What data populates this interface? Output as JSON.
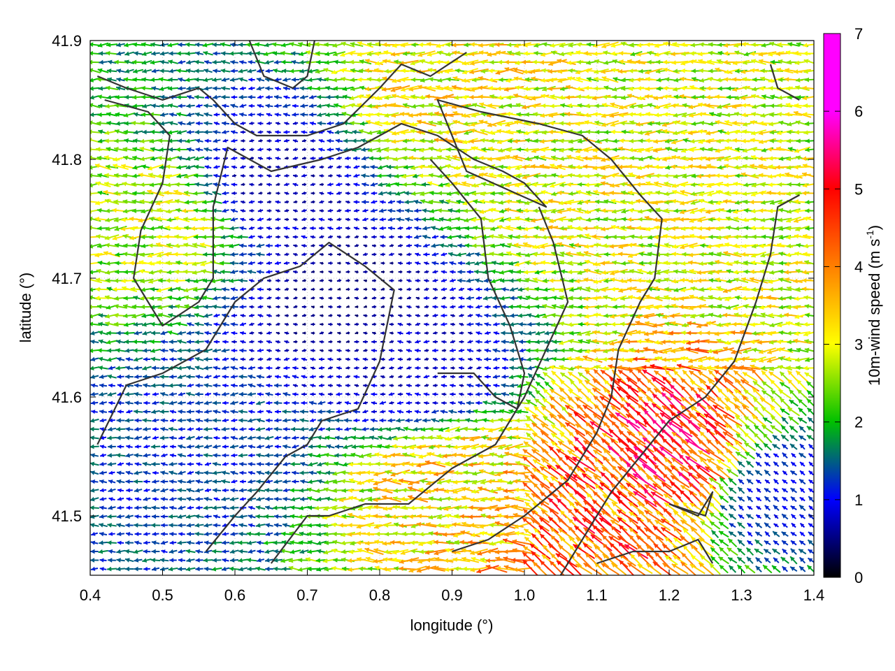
{
  "chart_data": {
    "type": "vector-field",
    "xlabel": "longitude (°)",
    "ylabel": "latitude (°)",
    "colorbar_label_main": "10m-wind speed (m s",
    "colorbar_label_exp": "-1",
    "colorbar_label_close": ")",
    "xlim": [
      0.4,
      1.4
    ],
    "ylim": [
      41.45,
      41.9
    ],
    "xticks": [
      "0.4",
      "0.5",
      "0.6",
      "0.7",
      "0.8",
      "0.9",
      "1.0",
      "1.1",
      "1.2",
      "1.3",
      "1.4"
    ],
    "yticks": [
      "41.5",
      "41.6",
      "41.7",
      "41.8",
      "41.9"
    ],
    "colorbar_ticks": [
      "0",
      "1",
      "2",
      "3",
      "4",
      "5",
      "6",
      "7"
    ],
    "colorbar_range": [
      0,
      7
    ],
    "colorbar_colors": [
      "#000000",
      "#0000ff",
      "#00c000",
      "#ffff00",
      "#ff8000",
      "#ff0000",
      "#ff00ff"
    ],
    "grid": true,
    "wind_direction": "mostly from east (arrows pointing west)",
    "speed_regions": [
      {
        "lon": 0.75,
        "lat": 41.68,
        "speed": 0.6
      },
      {
        "lon": 0.65,
        "lat": 41.78,
        "speed": 0.8
      },
      {
        "lon": 0.85,
        "lat": 41.62,
        "speed": 0.9
      },
      {
        "lon": 0.5,
        "lat": 41.75,
        "speed": 3.2
      },
      {
        "lon": 0.9,
        "lat": 41.85,
        "speed": 3.6
      },
      {
        "lon": 1.1,
        "lat": 41.76,
        "speed": 3.4
      },
      {
        "lon": 1.2,
        "lat": 41.55,
        "speed": 5.5
      },
      {
        "lon": 1.1,
        "lat": 41.5,
        "speed": 5.0
      },
      {
        "lon": 0.9,
        "lat": 41.53,
        "speed": 3.8
      },
      {
        "lon": 1.35,
        "lat": 41.52,
        "speed": 1.3
      },
      {
        "lon": 0.55,
        "lat": 41.55,
        "speed": 1.5
      }
    ],
    "contours": [
      [
        [
          0.41,
          41.87
        ],
        [
          0.45,
          41.86
        ],
        [
          0.5,
          41.85
        ],
        [
          0.55,
          41.86
        ],
        [
          0.57,
          41.85
        ],
        [
          0.6,
          41.83
        ],
        [
          0.63,
          41.82
        ],
        [
          0.7,
          41.82
        ],
        [
          0.75,
          41.83
        ],
        [
          0.8,
          41.86
        ],
        [
          0.83,
          41.88
        ],
        [
          0.87,
          41.87
        ],
        [
          0.92,
          41.89
        ]
      ],
      [
        [
          0.42,
          41.85
        ],
        [
          0.48,
          41.84
        ],
        [
          0.51,
          41.82
        ],
        [
          0.5,
          41.78
        ],
        [
          0.47,
          41.74
        ],
        [
          0.46,
          41.7
        ],
        [
          0.5,
          41.66
        ],
        [
          0.55,
          41.68
        ],
        [
          0.57,
          41.7
        ],
        [
          0.57,
          41.76
        ],
        [
          0.59,
          41.81
        ],
        [
          0.65,
          41.79
        ],
        [
          0.72,
          41.8
        ],
        [
          0.77,
          41.81
        ],
        [
          0.83,
          41.83
        ],
        [
          0.88,
          41.82
        ],
        [
          0.93,
          41.8
        ],
        [
          0.97,
          41.79
        ],
        [
          1.0,
          41.78
        ],
        [
          1.03,
          41.76
        ],
        [
          0.92,
          41.79
        ],
        [
          0.88,
          41.85
        ],
        [
          0.94,
          41.84
        ],
        [
          1.02,
          41.83
        ],
        [
          1.08,
          41.82
        ],
        [
          1.12,
          41.8
        ],
        [
          1.16,
          41.77
        ],
        [
          1.19,
          41.75
        ],
        [
          1.18,
          41.7
        ],
        [
          1.16,
          41.68
        ],
        [
          1.13,
          41.64
        ],
        [
          1.12,
          41.6
        ],
        [
          1.1,
          41.57
        ],
        [
          1.06,
          41.53
        ],
        [
          1.0,
          41.5
        ],
        [
          0.95,
          41.48
        ],
        [
          0.9,
          41.47
        ]
      ],
      [
        [
          0.41,
          41.56
        ],
        [
          0.45,
          41.61
        ],
        [
          0.5,
          41.62
        ],
        [
          0.56,
          41.64
        ],
        [
          0.6,
          41.68
        ],
        [
          0.64,
          41.7
        ],
        [
          0.69,
          41.71
        ],
        [
          0.73,
          41.73
        ],
        [
          0.78,
          41.71
        ],
        [
          0.82,
          41.69
        ],
        [
          0.8,
          41.63
        ],
        [
          0.77,
          41.59
        ],
        [
          0.72,
          41.58
        ],
        [
          0.7,
          41.56
        ],
        [
          0.67,
          41.55
        ],
        [
          0.63,
          41.52
        ],
        [
          0.6,
          41.5
        ],
        [
          0.56,
          41.47
        ]
      ],
      [
        [
          0.65,
          41.46
        ],
        [
          0.7,
          41.5
        ],
        [
          0.73,
          41.5
        ],
        [
          0.78,
          41.51
        ],
        [
          0.84,
          41.51
        ],
        [
          0.9,
          41.54
        ],
        [
          0.96,
          41.56
        ],
        [
          1.0,
          41.6
        ],
        [
          1.03,
          41.64
        ],
        [
          1.06,
          41.68
        ],
        [
          1.04,
          41.73
        ],
        [
          1.02,
          41.76
        ]
      ],
      [
        [
          0.88,
          41.62
        ],
        [
          0.93,
          41.62
        ],
        [
          0.96,
          41.6
        ],
        [
          0.99,
          41.59
        ],
        [
          1.0,
          41.62
        ],
        [
          0.98,
          41.66
        ],
        [
          0.95,
          41.7
        ],
        [
          0.94,
          41.75
        ],
        [
          0.9,
          41.78
        ],
        [
          0.87,
          41.8
        ]
      ],
      [
        [
          1.05,
          41.45
        ],
        [
          1.08,
          41.48
        ],
        [
          1.12,
          41.52
        ],
        [
          1.16,
          41.55
        ],
        [
          1.2,
          41.58
        ],
        [
          1.25,
          41.6
        ],
        [
          1.29,
          41.63
        ],
        [
          1.32,
          41.68
        ],
        [
          1.34,
          41.72
        ],
        [
          1.35,
          41.76
        ],
        [
          1.38,
          41.77
        ]
      ],
      [
        [
          1.1,
          41.46
        ],
        [
          1.15,
          41.47
        ],
        [
          1.2,
          41.47
        ],
        [
          1.24,
          41.48
        ],
        [
          1.26,
          41.46
        ]
      ],
      [
        [
          1.2,
          41.51
        ],
        [
          1.24,
          41.5
        ],
        [
          1.26,
          41.52
        ],
        [
          1.25,
          41.5
        ],
        [
          1.2,
          41.51
        ]
      ],
      [
        [
          1.34,
          41.88
        ],
        [
          1.35,
          41.86
        ],
        [
          1.38,
          41.85
        ]
      ],
      [
        [
          0.62,
          41.9
        ],
        [
          0.64,
          41.87
        ],
        [
          0.68,
          41.86
        ],
        [
          0.7,
          41.87
        ],
        [
          0.71,
          41.9
        ]
      ]
    ]
  }
}
